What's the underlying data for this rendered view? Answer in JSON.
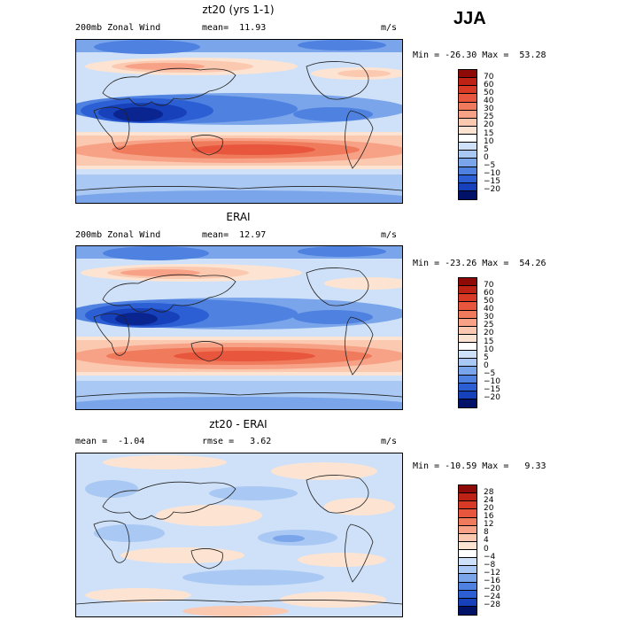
{
  "season": "JJA",
  "colors": {
    "warm": [
      "#fde4d2",
      "#fbc8b0",
      "#f7a286",
      "#f07b5c",
      "#e8563d",
      "#d93a26",
      "#bd2214",
      "#8e0a06"
    ],
    "cool": [
      "#cfe1f8",
      "#a9c8f3",
      "#7aa5ea",
      "#4f82e0",
      "#2c5fd3",
      "#1740bb",
      "#0a2590",
      "#001268"
    ]
  },
  "panels": [
    {
      "title": "zt20 (yrs 1-1)",
      "sub_left": "200mb Zonal Wind",
      "sub_mid": "mean=  11.93",
      "units": "m/s",
      "minmax": "Min = -26.30 Max =  53.28",
      "colorbar_labels": [
        "70",
        "60",
        "50",
        "40",
        "30",
        "25",
        "20",
        "15",
        "10",
        "5",
        "0",
        "−5",
        "−10",
        "−15",
        "−20"
      ],
      "colorbar_colors": [
        "#8e0a06",
        "#bd2214",
        "#d93a26",
        "#e8563d",
        "#f07b5c",
        "#f7a286",
        "#fbc8b0",
        "#fde4d2",
        "#ffffff",
        "#cfe1f8",
        "#a9c8f3",
        "#7aa5ea",
        "#4f82e0",
        "#2c5fd3",
        "#1740bb",
        "#001268"
      ]
    },
    {
      "title": "ERAI",
      "sub_left": "200mb Zonal Wind",
      "sub_mid": "mean=  12.97",
      "units": "m/s",
      "minmax": "Min = -23.26 Max =  54.26",
      "colorbar_labels": [
        "70",
        "60",
        "50",
        "40",
        "30",
        "25",
        "20",
        "15",
        "10",
        "5",
        "0",
        "−5",
        "−10",
        "−15",
        "−20"
      ],
      "colorbar_colors": [
        "#8e0a06",
        "#bd2214",
        "#d93a26",
        "#e8563d",
        "#f07b5c",
        "#f7a286",
        "#fbc8b0",
        "#fde4d2",
        "#ffffff",
        "#cfe1f8",
        "#a9c8f3",
        "#7aa5ea",
        "#4f82e0",
        "#2c5fd3",
        "#1740bb",
        "#001268"
      ]
    },
    {
      "title": "zt20 - ERAI",
      "sub_left": "mean =  -1.04",
      "sub_mid": "rmse =   3.62",
      "units": "m/s",
      "minmax": "Min = -10.59 Max =   9.33",
      "colorbar_labels": [
        "28",
        "24",
        "20",
        "16",
        "12",
        "8",
        "4",
        "0",
        "−4",
        "−8",
        "−12",
        "−16",
        "−20",
        "−24",
        "−28"
      ],
      "colorbar_colors": [
        "#8e0a06",
        "#bd2214",
        "#d93a26",
        "#e8563d",
        "#f07b5c",
        "#f7a286",
        "#fbc8b0",
        "#fde4d2",
        "#ffffff",
        "#cfe1f8",
        "#a9c8f3",
        "#7aa5ea",
        "#4f82e0",
        "#2c5fd3",
        "#1740bb",
        "#001268"
      ]
    }
  ]
}
